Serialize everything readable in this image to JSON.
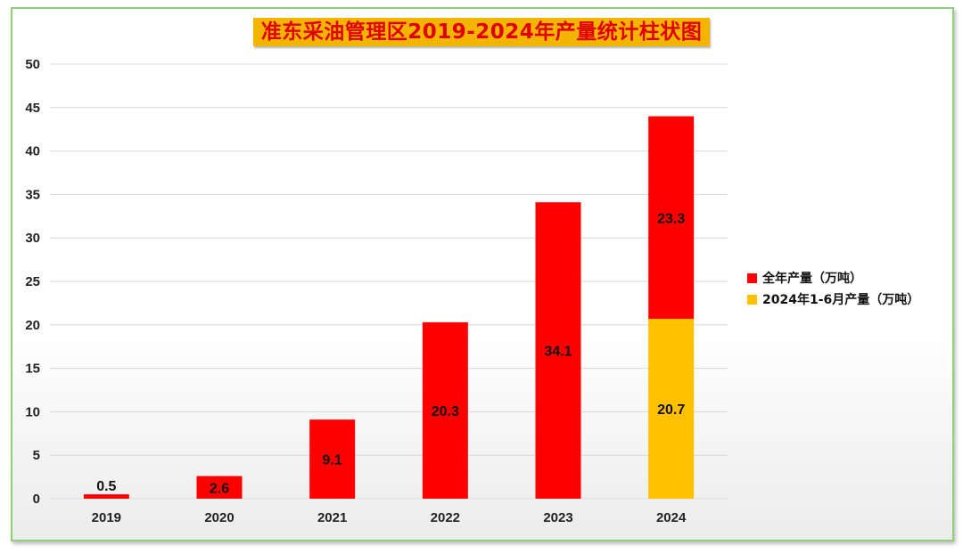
{
  "chart_data": {
    "type": "bar",
    "stacked": true,
    "title": "准东采油管理区2019-2024年产量统计柱状图",
    "categories": [
      "2019",
      "2020",
      "2021",
      "2022",
      "2023",
      "2024"
    ],
    "ylim": [
      0,
      50
    ],
    "yticks": [
      "0",
      "5",
      "10",
      "15",
      "20",
      "25",
      "30",
      "35",
      "40",
      "45",
      "50"
    ],
    "grid": true,
    "legend_position": "right",
    "series": [
      {
        "name": "2024年1-6月产量（万吨）",
        "color": "#ffc000",
        "values": [
          0,
          0,
          0,
          0,
          0,
          20.7
        ],
        "labels": [
          "",
          "",
          "",
          "",
          "",
          "20.7"
        ]
      },
      {
        "name": "全年产量（万吨）",
        "color": "#ff0000",
        "values": [
          0.5,
          2.6,
          9.1,
          20.3,
          34.1,
          23.3
        ],
        "labels": [
          "0.5",
          "2.6",
          "9.1",
          "20.3",
          "34.1",
          "23.3"
        ]
      }
    ],
    "legend": [
      {
        "name": "全年产量（万吨）",
        "color": "#ff0000"
      },
      {
        "name": "2024年1-6月产量（万吨）",
        "color": "#ffc000"
      }
    ]
  }
}
